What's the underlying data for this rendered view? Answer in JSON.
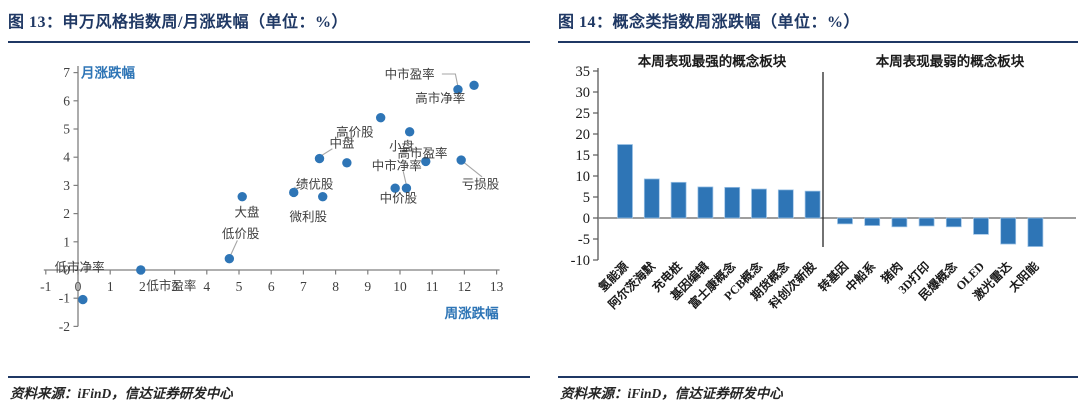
{
  "colors": {
    "navy": "#1F3864",
    "series_blue": "#2E75B6",
    "bar_edge": "#9DC3E6",
    "axis_line": "#7f7f7f",
    "tick_text": "#404040",
    "annotation_text": "#3f3f3f",
    "connector": "#A6A6A6",
    "black_text": "#1a1a1a"
  },
  "figure13": {
    "title": "图 13：申万风格指数周/月涨跌幅（单位：%）",
    "source": "资料来源：iFinD，信达证券研发中心"
  },
  "figure14": {
    "title": "图 14：概念类指数周涨跌幅（单位：%）",
    "source": "资料来源：iFinD，信达证券研发中心"
  },
  "chart_data": [
    {
      "type": "scatter",
      "title": "申万风格指数周/月涨跌幅（单位：%）",
      "xlabel": "周涨跌幅",
      "ylabel": "月涨跌幅",
      "xlim": [
        -1,
        13
      ],
      "ylim": [
        -2,
        7
      ],
      "xticks": [
        -1,
        0,
        1,
        2,
        3,
        4,
        5,
        6,
        7,
        8,
        9,
        10,
        11,
        12,
        13
      ],
      "yticks": [
        -2,
        -1,
        0,
        1,
        2,
        3,
        4,
        5,
        6,
        7
      ],
      "grid": false,
      "points": [
        {
          "x": 0.15,
          "y": -1.05
        },
        {
          "x": 1.95,
          "y": 0.0
        },
        {
          "x": 4.7,
          "y": 0.4
        },
        {
          "x": 5.1,
          "y": 2.6
        },
        {
          "x": 6.7,
          "y": 2.75
        },
        {
          "x": 7.6,
          "y": 2.6
        },
        {
          "x": 7.5,
          "y": 3.95
        },
        {
          "x": 8.35,
          "y": 3.8
        },
        {
          "x": 9.4,
          "y": 5.4
        },
        {
          "x": 10.3,
          "y": 4.9
        },
        {
          "x": 9.85,
          "y": 2.9
        },
        {
          "x": 10.2,
          "y": 2.9
        },
        {
          "x": 10.8,
          "y": 3.85
        },
        {
          "x": 11.9,
          "y": 3.9
        },
        {
          "x": 11.8,
          "y": 6.4
        },
        {
          "x": 12.3,
          "y": 6.55
        }
      ],
      "annotations": [
        {
          "text": "低市净率",
          "x": 0.05,
          "y": 0.1
        },
        {
          "text": "低市盈率",
          "x": 2.9,
          "y": -0.55
        },
        {
          "text": "低价股",
          "x": 5.05,
          "y": 1.3,
          "connector": [
            [
              4.95,
              1.05
            ],
            [
              4.75,
              0.55
            ]
          ]
        },
        {
          "text": "大盘",
          "x": 5.25,
          "y": 2.05
        },
        {
          "text": "绩优股",
          "x": 7.35,
          "y": 3.05,
          "connector": [
            [
              6.75,
              2.95
            ],
            [
              6.7,
              2.85
            ]
          ]
        },
        {
          "text": "微利股",
          "x": 7.15,
          "y": 1.9
        },
        {
          "text": "中盘",
          "x": 8.2,
          "y": 4.5,
          "connector": [
            [
              7.9,
              4.3
            ],
            [
              7.55,
              4.05
            ]
          ]
        },
        {
          "text": "高价股",
          "x": 8.6,
          "y": 4.9
        },
        {
          "text": "小盘",
          "x": 10.05,
          "y": 4.4
        },
        {
          "text": "高市盈率",
          "x": 10.7,
          "y": 4.15
        },
        {
          "text": "中市净率",
          "x": 9.9,
          "y": 3.7,
          "connector": [
            [
              10.1,
              3.5
            ],
            [
              10.2,
              3.0
            ]
          ]
        },
        {
          "text": "中价股",
          "x": 9.95,
          "y": 2.55
        },
        {
          "text": "亏损股",
          "x": 12.5,
          "y": 3.05,
          "connector": [
            [
              12.0,
              3.8
            ],
            [
              12.55,
              3.3
            ]
          ]
        },
        {
          "text": "中市盈率",
          "x": 10.3,
          "y": 6.95,
          "connector": [
            [
              11.3,
              6.95
            ],
            [
              11.72,
              6.95
            ],
            [
              11.8,
              6.5
            ]
          ]
        },
        {
          "text": "高市净率",
          "x": 11.25,
          "y": 6.1
        }
      ]
    },
    {
      "type": "bar",
      "title": "概念类指数周涨跌幅（单位：%）",
      "categories": [
        "氢能源",
        "阿尔茨海默",
        "充电桩",
        "基因编辑",
        "富士康概念",
        "PCB概念",
        "期货概念",
        "科创次新股",
        "转基因",
        "中船系",
        "猪肉",
        "3D打印",
        "民爆概念",
        "OLED",
        "激光雷达",
        "太阳能"
      ],
      "values": [
        17.5,
        9.3,
        8.5,
        7.4,
        7.3,
        6.9,
        6.7,
        6.4,
        -1.4,
        -1.8,
        -2.1,
        -1.9,
        -2.1,
        -3.9,
        -6.2,
        -6.8
      ],
      "ylim": [
        -10,
        35
      ],
      "yticks": [
        -10,
        -5,
        0,
        5,
        10,
        15,
        20,
        25,
        30,
        35
      ],
      "split_index": 8,
      "group_labels": [
        "本周表现最强的概念板块",
        "本周表现最弱的概念板块"
      ],
      "legend": "none",
      "grid": false
    }
  ]
}
